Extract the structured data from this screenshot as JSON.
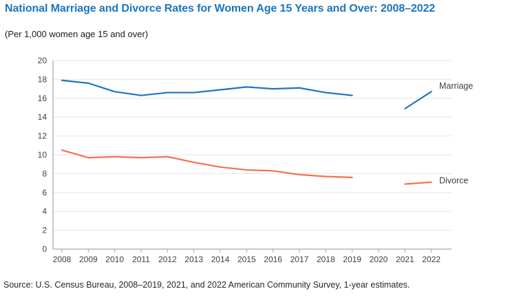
{
  "page": {
    "title": "National Marriage and Divorce Rates for Women Age 15 Years and Over: 2008–2022",
    "subtitle": "(Per 1,000 women age 15 and over)",
    "source": "Source: U.S. Census Bureau, 2008–2019, 2021, and 2022 American Community Survey, 1-year estimates."
  },
  "colors": {
    "title_blue": "#1b75bc",
    "marriage_line": "#1e73be",
    "divorce_line": "#f4714d",
    "gridline": "#e6e6e6",
    "axis": "#a6a6a6",
    "tick_text": "#414042",
    "series_label_text": "#414042"
  },
  "chart_data": {
    "type": "line",
    "title": "National Marriage and Divorce Rates for Women Age 15 Years and Over: 2008–2022",
    "subtitle": "(Per 1,000 women age 15 and over)",
    "x": [
      2008,
      2009,
      2010,
      2011,
      2012,
      2013,
      2014,
      2015,
      2016,
      2017,
      2018,
      2019,
      2020,
      2021,
      2022
    ],
    "series": [
      {
        "name": "Marriage",
        "color": "#1e73be",
        "values": [
          17.9,
          17.6,
          16.7,
          16.3,
          16.6,
          16.6,
          16.9,
          17.2,
          17.0,
          17.1,
          16.6,
          16.3,
          null,
          14.9,
          16.7
        ]
      },
      {
        "name": "Divorce",
        "color": "#f4714d",
        "values": [
          10.5,
          9.7,
          9.8,
          9.7,
          9.8,
          9.2,
          8.7,
          8.4,
          8.3,
          7.9,
          7.7,
          7.6,
          null,
          6.9,
          7.1
        ]
      }
    ],
    "ylim": [
      0,
      20
    ],
    "ytick_step": 2,
    "grid": true,
    "legend_position": "right-end-labels",
    "note": "No data shown for 2020"
  }
}
